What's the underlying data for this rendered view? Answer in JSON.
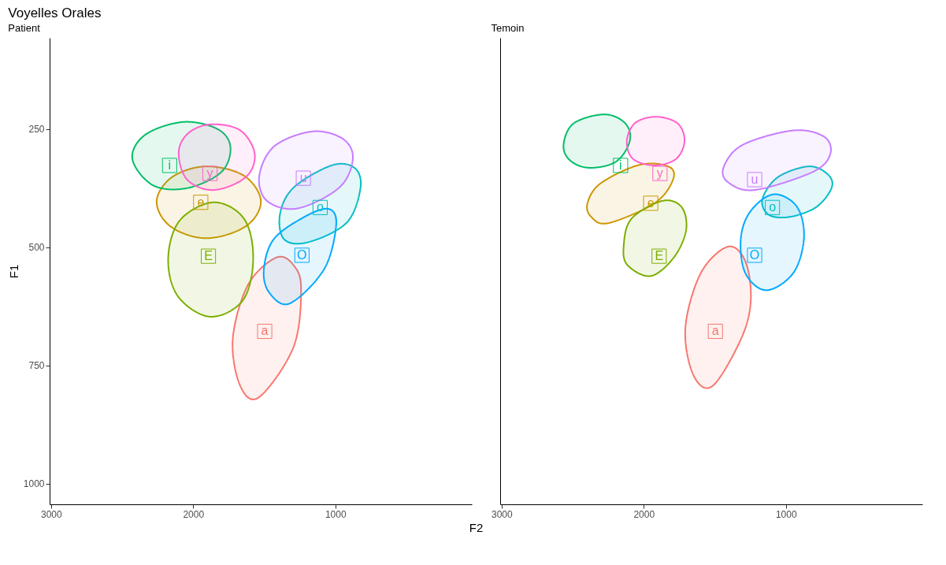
{
  "chart_data": [
    {
      "type": "area",
      "title": "Voyelles Orales",
      "subtitle": "Patient",
      "xlabel": "F2",
      "ylabel": "F1",
      "xlim": [
        3010,
        40
      ],
      "ylim": [
        1044,
        57
      ],
      "xticks": [
        3000,
        2000,
        1000
      ],
      "yticks": [
        250,
        500,
        750,
        1000
      ],
      "grid": false,
      "marker": "none",
      "series": [
        {
          "color": "#F8766D",
          "x": [
            1417,
            1294,
            1241,
            1294,
            1535,
            1668,
            1722,
            1615
          ],
          "values": [
            522,
            538,
            588,
            711,
            817,
            794,
            695,
            580
          ]
        },
        {
          "color": "#CD9600",
          "x": [
            2257,
            2150,
            1909,
            1642,
            1524,
            1631,
            1909,
            2160
          ],
          "values": [
            403,
            352,
            329,
            349,
            403,
            456,
            481,
            456
          ]
        },
        {
          "color": "#7CAE00",
          "x": [
            2176,
            2096,
            1856,
            1642,
            1578,
            1652,
            1882,
            2107
          ],
          "values": [
            525,
            444,
            405,
            440,
            525,
            613,
            647,
            604
          ]
        },
        {
          "color": "#00BE67",
          "x": [
            2428,
            2337,
            2070,
            1829,
            1738,
            1802,
            2043,
            2283
          ],
          "values": [
            313,
            262,
            235,
            250,
            288,
            341,
            375,
            369
          ]
        },
        {
          "color": "#00BFC4",
          "x": [
            1390,
            1294,
            1027,
            866,
            823,
            920,
            1187,
            1358
          ],
          "values": [
            431,
            374,
            327,
            332,
            374,
            448,
            489,
            484
          ]
        },
        {
          "color": "#00A9FF",
          "x": [
            1503,
            1428,
            1187,
            1037,
            995,
            1080,
            1321,
            1465
          ],
          "values": [
            547,
            481,
            431,
            420,
            456,
            547,
            619,
            596
          ]
        },
        {
          "color": "#C77CFF",
          "x": [
            1535,
            1428,
            1160,
            946,
            877,
            973,
            1267,
            1481
          ],
          "values": [
            349,
            286,
            255,
            271,
            313,
            374,
            418,
            402
          ]
        },
        {
          "color": "#FF61CC",
          "x": [
            2102,
            2032,
            1872,
            1668,
            1567,
            1631,
            1856,
            2043
          ],
          "values": [
            299,
            258,
            240,
            253,
            303,
            352,
            379,
            357
          ]
        }
      ],
      "annotations": [
        {
          "text": "a",
          "x": 1497,
          "y": 678
        },
        {
          "text": "e",
          "x": 1947,
          "y": 405
        },
        {
          "text": "E",
          "x": 1893,
          "y": 519
        },
        {
          "text": "i",
          "x": 2166,
          "y": 327
        },
        {
          "text": "o",
          "x": 1107,
          "y": 416
        },
        {
          "text": "O",
          "x": 1235,
          "y": 517
        },
        {
          "text": "u",
          "x": 1225,
          "y": 354
        },
        {
          "text": "y",
          "x": 1882,
          "y": 344
        }
      ]
    },
    {
      "type": "area",
      "subtitle": "Temoin",
      "xlim": [
        3010,
        40
      ],
      "ylim": [
        1044,
        57
      ],
      "xticks": [
        3000,
        2000,
        1000
      ],
      "yticks": [
        250,
        500,
        750,
        1000
      ],
      "tick_labels": "x",
      "grid": false,
      "marker": "none",
      "series": [
        {
          "color": "#F8766D",
          "x": [
            1409,
            1285,
            1247,
            1317,
            1518,
            1653,
            1707,
            1599
          ],
          "values": [
            499,
            530,
            613,
            695,
            794,
            769,
            670,
            555
          ]
        },
        {
          "color": "#CD9600",
          "x": [
            2396,
            2304,
            2033,
            1827,
            1794,
            1924,
            2249,
            2369
          ],
          "values": [
            407,
            365,
            326,
            329,
            357,
            407,
            449,
            436
          ]
        },
        {
          "color": "#7CAE00",
          "x": [
            2141,
            2087,
            1870,
            1734,
            1702,
            1789,
            1951,
            2114
          ],
          "values": [
            497,
            440,
            402,
            415,
            464,
            522,
            561,
            538
          ]
        },
        {
          "color": "#00BE67",
          "x": [
            2564,
            2493,
            2276,
            2130,
            2098,
            2195,
            2385,
            2520
          ],
          "values": [
            283,
            238,
            219,
            238,
            275,
            319,
            332,
            316
          ]
        },
        {
          "color": "#00BFC4",
          "x": [
            1165,
            1057,
            840,
            705,
            678,
            786,
            976,
            1122
          ],
          "values": [
            398,
            352,
            329,
            346,
            374,
            415,
            436,
            431
          ]
        },
        {
          "color": "#00A9FF",
          "x": [
            1317,
            1247,
            1084,
            921,
            873,
            949,
            1138,
            1285
          ],
          "values": [
            481,
            423,
            388,
            415,
            481,
            555,
            591,
            555
          ]
        },
        {
          "color": "#C77CFF",
          "x": [
            1436,
            1301,
            949,
            732,
            688,
            813,
            1220,
            1409
          ],
          "values": [
            329,
            283,
            253,
            266,
            303,
            341,
            379,
            362
          ]
        },
        {
          "color": "#FF61CC",
          "x": [
            2119,
            2060,
            1913,
            1762,
            1713,
            1772,
            1924,
            2076
          ],
          "values": [
            275,
            237,
            224,
            238,
            275,
            313,
            327,
            313
          ]
        }
      ],
      "annotations": [
        {
          "text": "a",
          "x": 1496,
          "y": 678
        },
        {
          "text": "e",
          "x": 1951,
          "y": 407
        },
        {
          "text": "E",
          "x": 1892,
          "y": 519
        },
        {
          "text": "i",
          "x": 2163,
          "y": 327
        },
        {
          "text": "o",
          "x": 1095,
          "y": 416
        },
        {
          "text": "O",
          "x": 1220,
          "y": 517
        },
        {
          "text": "u",
          "x": 1220,
          "y": 357
        },
        {
          "text": "y",
          "x": 1886,
          "y": 344
        }
      ]
    }
  ]
}
